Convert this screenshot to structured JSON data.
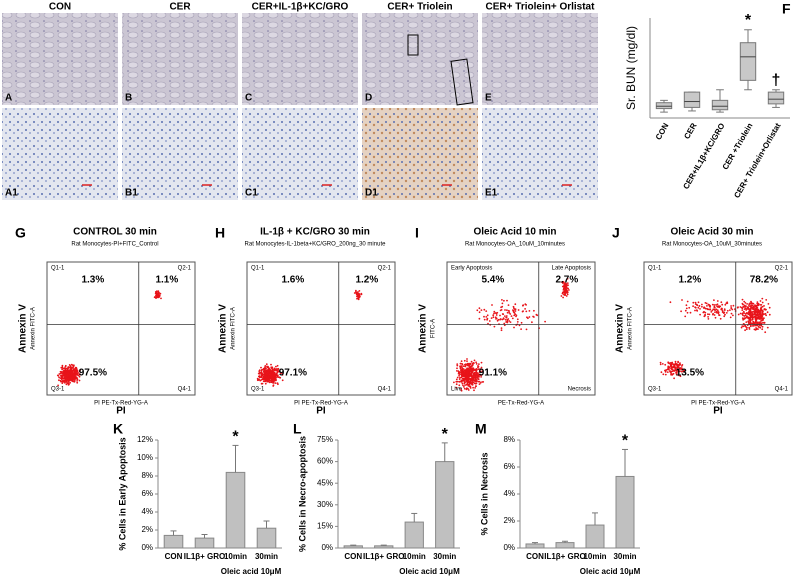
{
  "histology": {
    "columns": [
      {
        "title": "CON",
        "top_label": "A",
        "bottom_label": "A1"
      },
      {
        "title": "CER",
        "top_label": "B",
        "bottom_label": "B1"
      },
      {
        "title": "CER+IL-1β+KC/GRO",
        "top_label": "C",
        "bottom_label": "C1"
      },
      {
        "title": "CER+ Triolein",
        "top_label": "D",
        "bottom_label": "D1"
      },
      {
        "title": "CER+ Triolein+ Orlistat",
        "top_label": "E",
        "bottom_label": "E1"
      }
    ]
  },
  "flow": [
    {
      "panel": "G",
      "title": "CONTROL 30 min",
      "subtitle": "Rat Monocytes-PI+FITC_Control",
      "quadrants": [
        "Q1-1",
        "Q2-1",
        "Q3-1",
        "Q4-1"
      ],
      "percents": [
        "1.3%",
        "1.1%",
        "97.5%"
      ],
      "y_label": "Annexin V",
      "y_sublabel": "Annexin FITC-A",
      "x_label": "PI",
      "x_sublabel": "PI PE-Tx-Red-YG-A"
    },
    {
      "panel": "H",
      "title": "IL-1β +  KC/GRO 30 min",
      "subtitle": "Rat Monocytes-IL-1beta+KC/GRO_200ng_30 minute",
      "quadrants": [
        "Q1-1",
        "Q2-1",
        "Q3-1",
        "Q4-1"
      ],
      "percents": [
        "1.6%",
        "1.2%",
        "97.1%"
      ],
      "y_label": "Annexin V",
      "y_sublabel": "Annexin FITC-A",
      "x_label": "PI",
      "x_sublabel": "PI PE-Tx-Red-YG-A"
    },
    {
      "panel": "I",
      "title": "Oleic Acid 10 min",
      "subtitle": "Rat Monocytes-OA_10uM_10minutes",
      "quadrants": [
        "Early Apoptosis",
        "Late Apoptosis",
        "Live",
        "Necrosis"
      ],
      "percents": [
        "5.4%",
        "2.7%",
        "91.1%"
      ],
      "y_label": "Annexin V",
      "y_sublabel": "FITC-A",
      "x_label": "PE-Tx-Red-YG-A"
    },
    {
      "panel": "J",
      "title": "Oleic Acid 30 min",
      "subtitle": "Rat Monocytes-OA_10uM_30minutes",
      "quadrants": [
        "Q1-1",
        "Q2-1",
        "Q3-1",
        "Q4-1"
      ],
      "percents": [
        "1.2%",
        "78.2%",
        "13.5%"
      ],
      "y_label": "Annexin V",
      "y_sublabel": "Annexin FITC-A",
      "x_label": "PI",
      "x_sublabel": "PI PE-Tx-Red-YG-A"
    }
  ],
  "chart_data": [
    {
      "type": "box",
      "panel_label": "F",
      "y_label": "Sr. BUN (mg/dl)",
      "categories": [
        "CON",
        "CER",
        "CER+IL1β+KC/GRO",
        "CER +Triolein",
        "CER+ Triolein+Orlistat"
      ],
      "boxes": [
        {
          "min": 5,
          "q1": 8,
          "median": 10,
          "q3": 13,
          "max": 15
        },
        {
          "min": 6,
          "q1": 9,
          "median": 14,
          "q3": 22,
          "max": 22
        },
        {
          "min": 5,
          "q1": 7,
          "median": 10,
          "q3": 15,
          "max": 24
        },
        {
          "min": 24,
          "q1": 32,
          "median": 52,
          "q3": 64,
          "max": 75
        },
        {
          "min": 9,
          "q1": 12,
          "median": 16,
          "q3": 22,
          "max": 24
        }
      ],
      "markers": [
        null,
        null,
        null,
        "*",
        "†"
      ],
      "ylim": [
        0,
        85
      ],
      "color": "#c8c8c8"
    },
    {
      "type": "bar",
      "panel_label": "K",
      "y_label": "% Cells in Early Apoptosis",
      "categories": [
        "CON",
        "IL1β+ GRO",
        "10min",
        "30min"
      ],
      "group_label": "Oleic acid 10μM",
      "values": [
        1.4,
        1.1,
        8.4,
        2.2
      ],
      "errors": [
        0.5,
        0.4,
        3,
        0.8
      ],
      "markers": [
        null,
        null,
        "*",
        null
      ],
      "ylim": [
        0,
        12
      ],
      "yticks": [
        {
          "value": 0,
          "label": "0%"
        },
        {
          "value": 2,
          "label": "2%"
        },
        {
          "value": 4,
          "label": "4%"
        },
        {
          "value": 6,
          "label": "6%"
        },
        {
          "value": 8,
          "label": "8%"
        },
        {
          "value": 10,
          "label": "10%"
        },
        {
          "value": 12,
          "label": "12%"
        }
      ],
      "color": "#c0c0c0"
    },
    {
      "type": "bar",
      "panel_label": "L",
      "y_label": "% Cells in Necro-apoptosis",
      "categories": [
        "CON",
        "IL1β+ GRO",
        "10min",
        "30min"
      ],
      "group_label": "Oleic acid 10μM",
      "values": [
        1.5,
        1.5,
        18,
        60
      ],
      "errors": [
        0.5,
        0.5,
        6,
        13
      ],
      "markers": [
        null,
        null,
        null,
        "*"
      ],
      "ylim": [
        0,
        75
      ],
      "yticks": [
        {
          "value": 0,
          "label": "0%"
        },
        {
          "value": 15,
          "label": "15%"
        },
        {
          "value": 30,
          "label": "30%"
        },
        {
          "value": 45,
          "label": "45%"
        },
        {
          "value": 60,
          "label": "60%"
        },
        {
          "value": 75,
          "label": "75%"
        }
      ],
      "color": "#c0c0c0"
    },
    {
      "type": "bar",
      "panel_label": "M",
      "y_label": "% Cells in Necrosis",
      "categories": [
        "CON",
        "IL1β+ GRO",
        "10min",
        "30min"
      ],
      "group_label": "Oleic acid 10μM",
      "values": [
        0.3,
        0.4,
        1.7,
        5.3
      ],
      "errors": [
        0.1,
        0.1,
        0.9,
        2.0
      ],
      "markers": [
        null,
        null,
        null,
        "*"
      ],
      "ylim": [
        0,
        8
      ],
      "yticks": [
        {
          "value": 0,
          "label": "0%"
        },
        {
          "value": 2,
          "label": "2%"
        },
        {
          "value": 4,
          "label": "4%"
        },
        {
          "value": 6,
          "label": "6%"
        },
        {
          "value": 8,
          "label": "8%"
        }
      ],
      "color": "#c0c0c0"
    }
  ]
}
